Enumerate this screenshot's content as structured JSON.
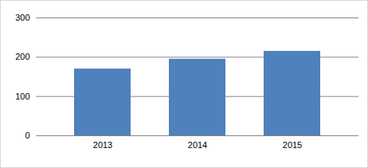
{
  "chart_data": {
    "type": "bar",
    "categories": [
      "2013",
      "2014",
      "2015"
    ],
    "values": [
      170,
      195,
      215
    ],
    "color": "#4f81bd",
    "ylim": [
      0,
      300
    ],
    "yticks": [
      0,
      100,
      200,
      300
    ],
    "grid": true
  }
}
